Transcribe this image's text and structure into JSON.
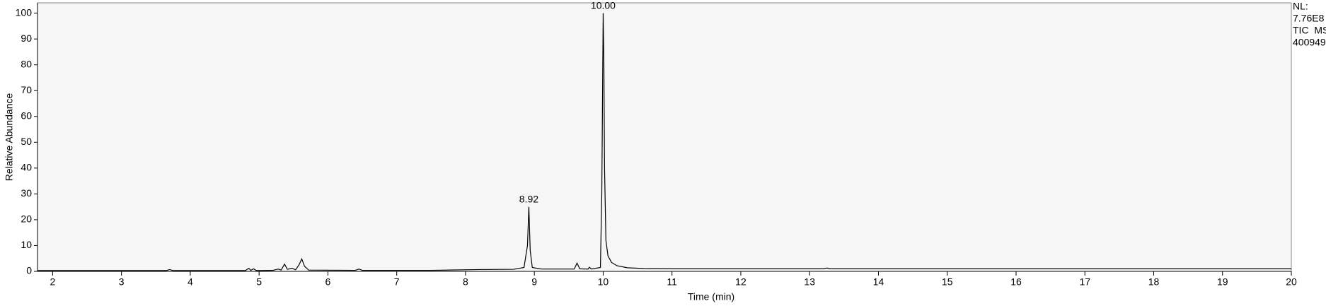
{
  "chart_data": {
    "type": "line",
    "xlabel": "Time (min)",
    "ylabel": "Relative Abundance",
    "x": [
      1.78,
      2.5,
      3.65,
      3.7,
      3.75,
      4.8,
      4.85,
      4.88,
      4.92,
      4.96,
      5.2,
      5.28,
      5.32,
      5.37,
      5.41,
      5.48,
      5.53,
      5.58,
      5.62,
      5.66,
      5.72,
      6.4,
      6.45,
      6.5,
      7.5,
      8.2,
      8.7,
      8.85,
      8.9,
      8.92,
      8.94,
      8.97,
      9.1,
      9.58,
      9.62,
      9.66,
      9.78,
      9.8,
      9.83,
      9.96,
      9.98,
      10.0,
      10.01,
      10.02,
      10.04,
      10.07,
      10.12,
      10.2,
      10.35,
      10.6,
      11,
      13.2,
      13.25,
      13.3,
      20
    ],
    "values": [
      0.3,
      0.3,
      0.3,
      0.7,
      0.3,
      0.3,
      1.2,
      0.4,
      1.0,
      0.3,
      0.4,
      0.9,
      0.5,
      2.8,
      0.8,
      1.2,
      0.6,
      2.5,
      4.8,
      2.0,
      0.5,
      0.4,
      0.9,
      0.4,
      0.4,
      0.7,
      0.8,
      1.5,
      10,
      25,
      8,
      1.5,
      0.9,
      0.9,
      3.2,
      1.0,
      0.9,
      1.6,
      0.9,
      1.5,
      30,
      100,
      82,
      40,
      12,
      6,
      3.5,
      2.2,
      1.4,
      1.1,
      1.0,
      1.0,
      1.3,
      1.0,
      1.0
    ],
    "color": "#000000",
    "xlim": [
      1.78,
      20
    ],
    "ylim": [
      0,
      104
    ],
    "xticks": [
      2,
      3,
      4,
      5,
      6,
      7,
      8,
      9,
      10,
      11,
      12,
      13,
      14,
      15,
      16,
      17,
      18,
      19,
      20
    ],
    "yticks": [
      0,
      10,
      20,
      30,
      40,
      50,
      60,
      70,
      80,
      90,
      100
    ],
    "annotations": [
      {
        "label": "10.00",
        "x": 10.0,
        "y": 100
      },
      {
        "label": "8.92",
        "x": 8.92,
        "y": 25
      }
    ],
    "info": [
      "NL:",
      "7.76E8",
      "TIC  MS",
      "400949"
    ]
  }
}
